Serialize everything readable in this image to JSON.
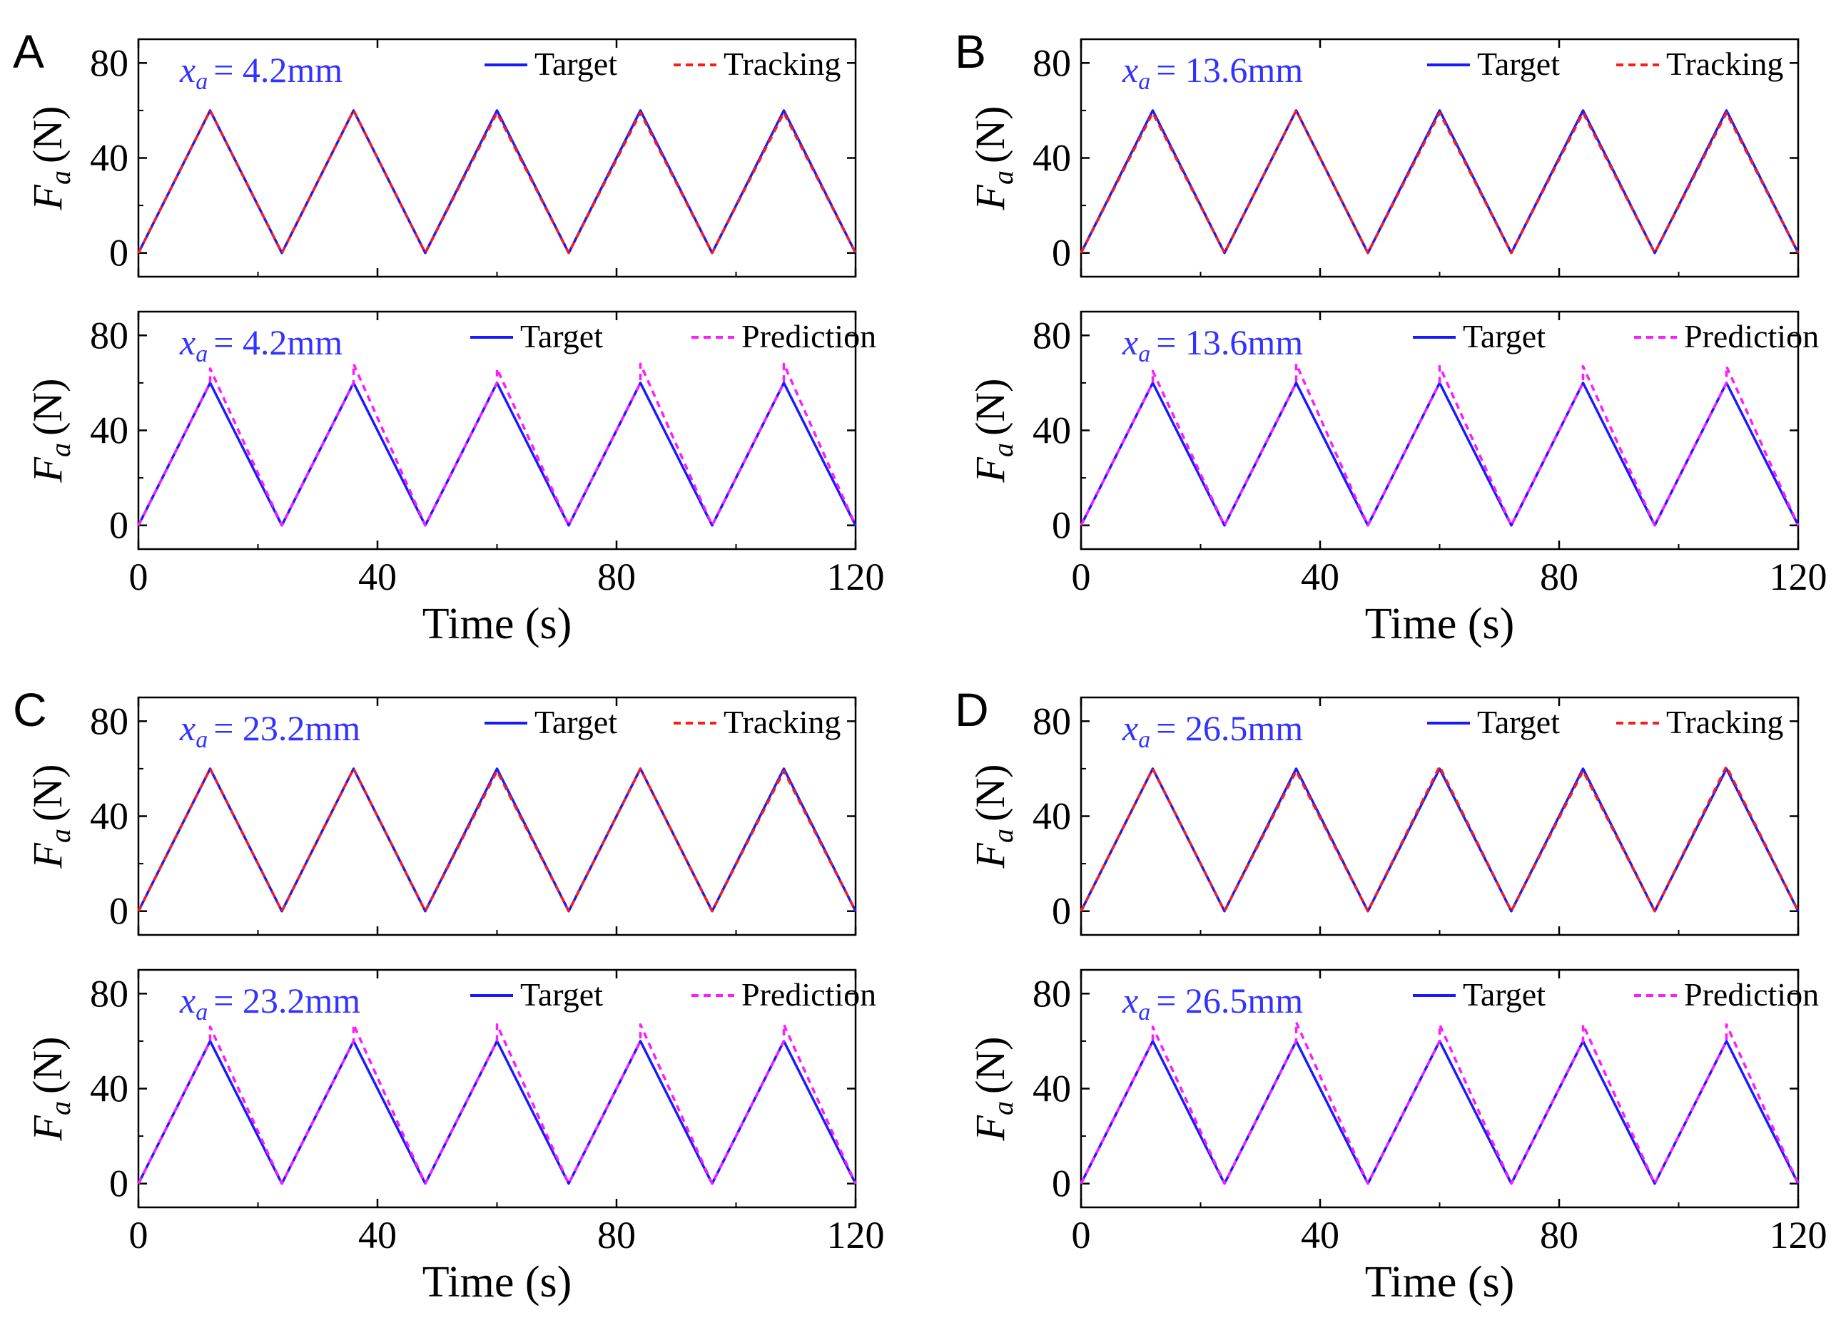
{
  "figure": {
    "panel_letters": [
      "A",
      "B",
      "C",
      "D"
    ]
  },
  "colors": {
    "target": "#1a1aff",
    "tracking": "#ff1a1a",
    "prediction": "#ff1aff",
    "annotation": "#3333ff",
    "axis": "#000000"
  },
  "chart_data": [
    {
      "id": "A-top",
      "panel": "A",
      "type": "line",
      "annotation_var": "x",
      "annotation_sub": "a",
      "annotation_value": "= 4.2mm",
      "ylabel_var": "F",
      "ylabel_sub": "a",
      "ylabel_unit": "(N)",
      "xlabel": "",
      "xlim": [
        0,
        120
      ],
      "ylim": [
        -10,
        90
      ],
      "xticks": [
        0,
        40,
        80,
        120
      ],
      "yticks": [
        0,
        40,
        80
      ],
      "show_xticklabels": false,
      "legend_position": "top-right",
      "series": [
        {
          "name": "Target",
          "style": "solid",
          "color_key": "target",
          "x": [
            0,
            12,
            24,
            36,
            48,
            60,
            72,
            84,
            96,
            108,
            120
          ],
          "y": [
            0,
            60,
            0,
            60,
            0,
            60,
            0,
            60,
            0,
            60,
            0
          ]
        },
        {
          "name": "Tracking",
          "style": "dashed",
          "color_key": "tracking",
          "x": [
            0,
            12,
            24,
            36,
            48,
            60,
            72,
            84,
            96,
            108,
            120
          ],
          "y": [
            0,
            60,
            0,
            60,
            0,
            59,
            0,
            59,
            0,
            59,
            0
          ]
        }
      ]
    },
    {
      "id": "A-bottom",
      "panel": "A",
      "type": "line",
      "annotation_var": "x",
      "annotation_sub": "a",
      "annotation_value": "= 4.2mm",
      "ylabel_var": "F",
      "ylabel_sub": "a",
      "ylabel_unit": "(N)",
      "xlabel": "Time (s)",
      "xlim": [
        0,
        120
      ],
      "ylim": [
        -10,
        90
      ],
      "xticks": [
        0,
        40,
        80,
        120
      ],
      "yticks": [
        0,
        40,
        80
      ],
      "show_xticklabels": true,
      "legend_position": "top-right",
      "series": [
        {
          "name": "Target",
          "style": "solid",
          "color_key": "target",
          "x": [
            0,
            12,
            24,
            36,
            48,
            60,
            72,
            84,
            96,
            108,
            120
          ],
          "y": [
            0,
            60,
            0,
            60,
            0,
            60,
            0,
            60,
            0,
            60,
            0
          ]
        },
        {
          "name": "Prediction",
          "style": "dashed",
          "color_key": "prediction",
          "x": [
            0,
            12,
            12,
            24,
            36,
            36,
            48,
            60,
            60,
            72,
            84,
            84,
            96,
            108,
            108,
            120
          ],
          "y": [
            0,
            60,
            66,
            0,
            60,
            68,
            0,
            60,
            66,
            0,
            60,
            68,
            0,
            60,
            68,
            0
          ]
        }
      ]
    },
    {
      "id": "B-top",
      "panel": "B",
      "type": "line",
      "annotation_var": "x",
      "annotation_sub": "a",
      "annotation_value": "= 13.6mm",
      "ylabel_var": "F",
      "ylabel_sub": "a",
      "ylabel_unit": "(N)",
      "xlabel": "",
      "xlim": [
        0,
        120
      ],
      "ylim": [
        -10,
        90
      ],
      "xticks": [
        0,
        40,
        80,
        120
      ],
      "yticks": [
        0,
        40,
        80
      ],
      "show_xticklabels": false,
      "legend_position": "top-right",
      "series": [
        {
          "name": "Target",
          "style": "solid",
          "color_key": "target",
          "x": [
            0,
            12,
            24,
            36,
            48,
            60,
            72,
            84,
            96,
            108,
            120
          ],
          "y": [
            0,
            60,
            0,
            60,
            0,
            60,
            0,
            60,
            0,
            60,
            0
          ]
        },
        {
          "name": "Tracking",
          "style": "dashed",
          "color_key": "tracking",
          "x": [
            0,
            12,
            24,
            36,
            48,
            60,
            72,
            84,
            96,
            108,
            120
          ],
          "y": [
            0,
            59,
            0,
            60,
            0,
            59,
            0,
            59,
            0,
            59,
            0
          ]
        }
      ]
    },
    {
      "id": "B-bottom",
      "panel": "B",
      "type": "line",
      "annotation_var": "x",
      "annotation_sub": "a",
      "annotation_value": "= 13.6mm",
      "ylabel_var": "F",
      "ylabel_sub": "a",
      "ylabel_unit": "(N)",
      "xlabel": "Time (s)",
      "xlim": [
        0,
        120
      ],
      "ylim": [
        -10,
        90
      ],
      "xticks": [
        0,
        40,
        80,
        120
      ],
      "yticks": [
        0,
        40,
        80
      ],
      "show_xticklabels": true,
      "legend_position": "top-right",
      "series": [
        {
          "name": "Target",
          "style": "solid",
          "color_key": "target",
          "x": [
            0,
            12,
            24,
            36,
            48,
            60,
            72,
            84,
            96,
            108,
            120
          ],
          "y": [
            0,
            60,
            0,
            60,
            0,
            60,
            0,
            60,
            0,
            60,
            0
          ]
        },
        {
          "name": "Prediction",
          "style": "dashed",
          "color_key": "prediction",
          "x": [
            0,
            12,
            12,
            24,
            36,
            36,
            48,
            60,
            60,
            72,
            84,
            84,
            96,
            108,
            108,
            120
          ],
          "y": [
            0,
            60,
            65,
            0,
            60,
            68,
            0,
            60,
            67,
            0,
            60,
            67,
            0,
            60,
            67,
            0
          ]
        }
      ]
    },
    {
      "id": "C-top",
      "panel": "C",
      "type": "line",
      "annotation_var": "x",
      "annotation_sub": "a",
      "annotation_value": "= 23.2mm",
      "ylabel_var": "F",
      "ylabel_sub": "a",
      "ylabel_unit": "(N)",
      "xlabel": "",
      "xlim": [
        0,
        120
      ],
      "ylim": [
        -10,
        90
      ],
      "xticks": [
        0,
        40,
        80,
        120
      ],
      "yticks": [
        0,
        40,
        80
      ],
      "show_xticklabels": false,
      "legend_position": "top-right",
      "series": [
        {
          "name": "Target",
          "style": "solid",
          "color_key": "target",
          "x": [
            0,
            12,
            24,
            36,
            48,
            60,
            72,
            84,
            96,
            108,
            120
          ],
          "y": [
            0,
            60,
            0,
            60,
            0,
            60,
            0,
            60,
            0,
            60,
            0
          ]
        },
        {
          "name": "Tracking",
          "style": "dashed",
          "color_key": "tracking",
          "x": [
            0,
            12,
            24,
            36,
            48,
            60,
            72,
            84,
            96,
            108,
            120
          ],
          "y": [
            0,
            60,
            0,
            60,
            0,
            59,
            0,
            60,
            0,
            59,
            0
          ]
        }
      ]
    },
    {
      "id": "C-bottom",
      "panel": "C",
      "type": "line",
      "annotation_var": "x",
      "annotation_sub": "a",
      "annotation_value": "= 23.2mm",
      "ylabel_var": "F",
      "ylabel_sub": "a",
      "ylabel_unit": "(N)",
      "xlabel": "Time (s)",
      "xlim": [
        0,
        120
      ],
      "ylim": [
        -10,
        90
      ],
      "xticks": [
        0,
        40,
        80,
        120
      ],
      "yticks": [
        0,
        40,
        80
      ],
      "show_xticklabels": true,
      "legend_position": "top-right",
      "series": [
        {
          "name": "Target",
          "style": "solid",
          "color_key": "target",
          "x": [
            0,
            12,
            24,
            36,
            48,
            60,
            72,
            84,
            96,
            108,
            120
          ],
          "y": [
            0,
            60,
            0,
            60,
            0,
            60,
            0,
            60,
            0,
            60,
            0
          ]
        },
        {
          "name": "Prediction",
          "style": "dashed",
          "color_key": "prediction",
          "x": [
            0,
            12,
            12,
            24,
            36,
            36,
            48,
            60,
            60,
            72,
            84,
            84,
            96,
            108,
            108,
            120
          ],
          "y": [
            0,
            60,
            66,
            0,
            60,
            67,
            0,
            60,
            67,
            0,
            60,
            67,
            0,
            60,
            67,
            0
          ]
        }
      ]
    },
    {
      "id": "D-top",
      "panel": "D",
      "type": "line",
      "annotation_var": "x",
      "annotation_sub": "a",
      "annotation_value": "= 26.5mm",
      "ylabel_var": "F",
      "ylabel_sub": "a",
      "ylabel_unit": "(N)",
      "xlabel": "",
      "xlim": [
        0,
        120
      ],
      "ylim": [
        -10,
        90
      ],
      "xticks": [
        0,
        40,
        80,
        120
      ],
      "yticks": [
        0,
        40,
        80
      ],
      "show_xticklabels": false,
      "legend_position": "top-right",
      "series": [
        {
          "name": "Target",
          "style": "solid",
          "color_key": "target",
          "x": [
            0,
            12,
            24,
            36,
            48,
            60,
            72,
            84,
            96,
            108,
            120
          ],
          "y": [
            0,
            60,
            0,
            60,
            0,
            60,
            0,
            60,
            0,
            60,
            0
          ]
        },
        {
          "name": "Tracking",
          "style": "dashed",
          "color_key": "tracking",
          "x": [
            0,
            12,
            24,
            36,
            48,
            60,
            72,
            84,
            96,
            108,
            120
          ],
          "y": [
            0,
            60,
            0,
            59,
            0,
            61,
            0,
            59,
            0,
            61,
            0
          ]
        }
      ]
    },
    {
      "id": "D-bottom",
      "panel": "D",
      "type": "line",
      "annotation_var": "x",
      "annotation_sub": "a",
      "annotation_value": "= 26.5mm",
      "ylabel_var": "F",
      "ylabel_sub": "a",
      "ylabel_unit": "(N)",
      "xlabel": "Time (s)",
      "xlim": [
        0,
        120
      ],
      "ylim": [
        -10,
        90
      ],
      "xticks": [
        0,
        40,
        80,
        120
      ],
      "yticks": [
        0,
        40,
        80
      ],
      "show_xticklabels": true,
      "legend_position": "top-right",
      "series": [
        {
          "name": "Target",
          "style": "solid",
          "color_key": "target",
          "x": [
            0,
            12,
            24,
            36,
            48,
            60,
            72,
            84,
            96,
            108,
            120
          ],
          "y": [
            0,
            60,
            0,
            60,
            0,
            60,
            0,
            60,
            0,
            60,
            0
          ]
        },
        {
          "name": "Prediction",
          "style": "dashed",
          "color_key": "prediction",
          "x": [
            0,
            12,
            12,
            24,
            36,
            36,
            48,
            60,
            60,
            72,
            84,
            84,
            96,
            108,
            108,
            120
          ],
          "y": [
            0,
            60,
            66,
            0,
            60,
            68,
            0,
            60,
            67,
            0,
            60,
            67,
            0,
            60,
            67,
            0
          ]
        }
      ]
    }
  ]
}
